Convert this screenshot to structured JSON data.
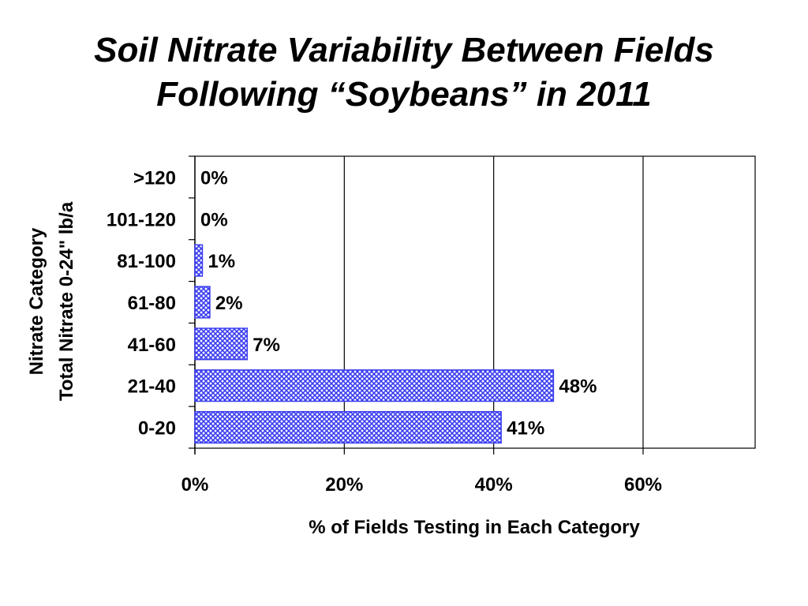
{
  "slide": {
    "title_line1": "Soil Nitrate Variability Between Fields",
    "title_line2": "Following “Soybeans” in 2011"
  },
  "chart_data": {
    "type": "bar",
    "orientation": "horizontal",
    "categories": [
      "0-20",
      "21-40",
      "41-60",
      "61-80",
      "81-100",
      "101-120",
      ">120"
    ],
    "values": [
      41,
      48,
      7,
      2,
      1,
      0,
      0
    ],
    "data_labels": [
      "41%",
      "48%",
      "7%",
      "2%",
      "1%",
      "0%",
      "0%"
    ],
    "xlabel": "% of Fields Testing in Each Category",
    "ylabel_line1": "Nitrate Category",
    "ylabel_line2": "Total Nitrate 0-24\" lb/a",
    "xlim": [
      0,
      75
    ],
    "xticks": [
      0,
      20,
      40,
      60
    ],
    "xtick_labels": [
      "0%",
      "20%",
      "40%",
      "60%"
    ],
    "grid": "vertical",
    "bar_color": "#3a3cf0",
    "bar_pattern": "crosshatch"
  }
}
